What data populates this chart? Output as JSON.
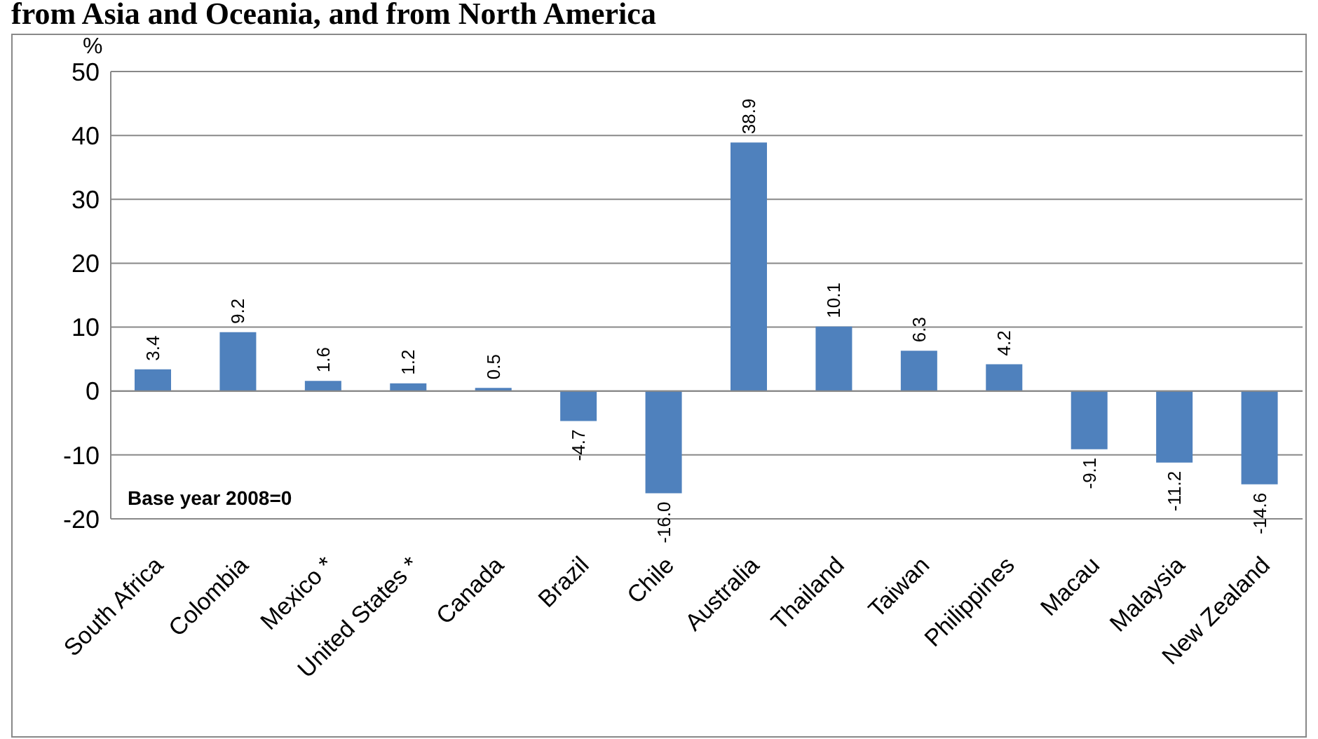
{
  "chart_data": {
    "type": "bar",
    "title": "from Asia and Oceania, and from North America",
    "ylabel": "%",
    "categories": [
      "South Africa",
      "Colombia",
      "Mexico *",
      "United States *",
      "Canada",
      "Brazil",
      "Chile",
      "Australia",
      "Thailand",
      "Taiwan",
      "Philippines",
      "Macau",
      "Malaysia",
      "New Zealand"
    ],
    "values": [
      3.4,
      9.2,
      1.6,
      1.2,
      0.5,
      -4.7,
      -16.0,
      38.9,
      10.1,
      6.3,
      4.2,
      -9.1,
      -11.2,
      -14.6
    ],
    "value_labels": [
      "3.4",
      "9.2",
      "1.6",
      "1.2",
      "0.5",
      "-4.7",
      "-16.0",
      "38.9",
      "10.1",
      "6.3",
      "4.2",
      "-9.1",
      "-11.2",
      "-14.6"
    ],
    "color": "#4f81bd",
    "ylim": [
      -20,
      50
    ],
    "yticks": [
      -20,
      -10,
      0,
      10,
      20,
      30,
      40,
      50
    ],
    "grid": "y",
    "annotations": [
      "Base year 2008=0"
    ]
  }
}
